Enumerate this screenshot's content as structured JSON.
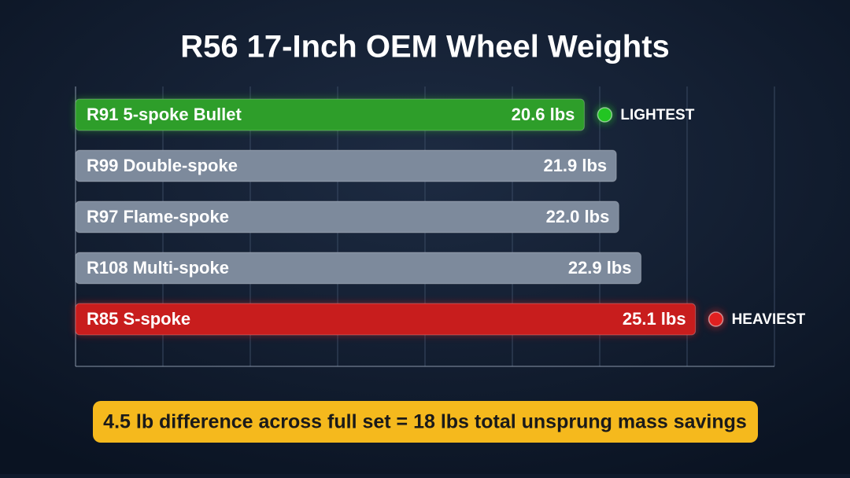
{
  "chart_data": {
    "type": "bar",
    "orientation": "horizontal",
    "title": "R56 17-Inch OEM Wheel Weights",
    "categories": [
      "R91 5-spoke Bullet",
      "R99 Double-spoke",
      "R97 Flame-spoke",
      "R108 Multi-spoke",
      "R85 S-spoke"
    ],
    "values": [
      20.6,
      21.9,
      22.0,
      22.9,
      25.1
    ],
    "value_labels": [
      "20.6 lbs",
      "21.9 lbs",
      "22.0 lbs",
      "22.9 lbs",
      "25.1 lbs"
    ],
    "colors": [
      "#2e9e2a",
      "#7d8a9c",
      "#7d8a9c",
      "#7d8a9c",
      "#c81d1d"
    ],
    "xlim": [
      0,
      28.3
    ],
    "grid": true,
    "min_label": {
      "text": "LIGHTEST",
      "color": "#22c522"
    },
    "max_label": {
      "text": "HEAVIEST",
      "color": "#e02020"
    },
    "note": "4.5 lb difference across full set = 18 lbs total unsprung mass savings"
  }
}
